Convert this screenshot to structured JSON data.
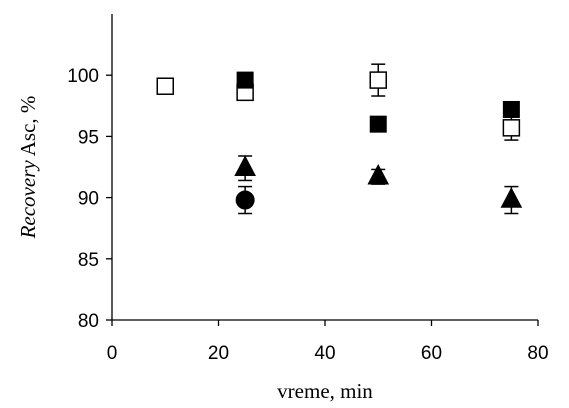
{
  "chart_data": {
    "type": "scatter",
    "title": "",
    "xlabel": "vreme, min",
    "ylabel": {
      "italic": "Recovery",
      "rest": " Asc, %"
    },
    "xlim": [
      0,
      80
    ],
    "ylim": [
      80,
      105
    ],
    "xticks": [
      "0",
      "20",
      "40",
      "60",
      "80"
    ],
    "yticks": [
      "80",
      "85",
      "90",
      "95",
      "100"
    ],
    "grid": false,
    "legend": "none",
    "series": [
      {
        "marker": "square-open",
        "points": [
          {
            "x": 10,
            "y": 99.1
          },
          {
            "x": 25,
            "y": 98.6,
            "err": 0.6
          },
          {
            "x": 50,
            "y": 99.6,
            "err": 1.3
          },
          {
            "x": 75,
            "y": 95.7,
            "err": 1.0
          }
        ]
      },
      {
        "marker": "square-filled",
        "points": [
          {
            "x": 25,
            "y": 99.6
          },
          {
            "x": 50,
            "y": 96.0
          },
          {
            "x": 75,
            "y": 97.2
          }
        ]
      },
      {
        "marker": "triangle-filled",
        "points": [
          {
            "x": 25,
            "y": 92.4,
            "err": 1.0
          },
          {
            "x": 50,
            "y": 91.7,
            "err": 0.6
          },
          {
            "x": 75,
            "y": 89.8,
            "err": 1.1
          }
        ]
      },
      {
        "marker": "circle-filled",
        "points": [
          {
            "x": 25,
            "y": 89.8,
            "err": 1.1
          }
        ]
      }
    ]
  }
}
